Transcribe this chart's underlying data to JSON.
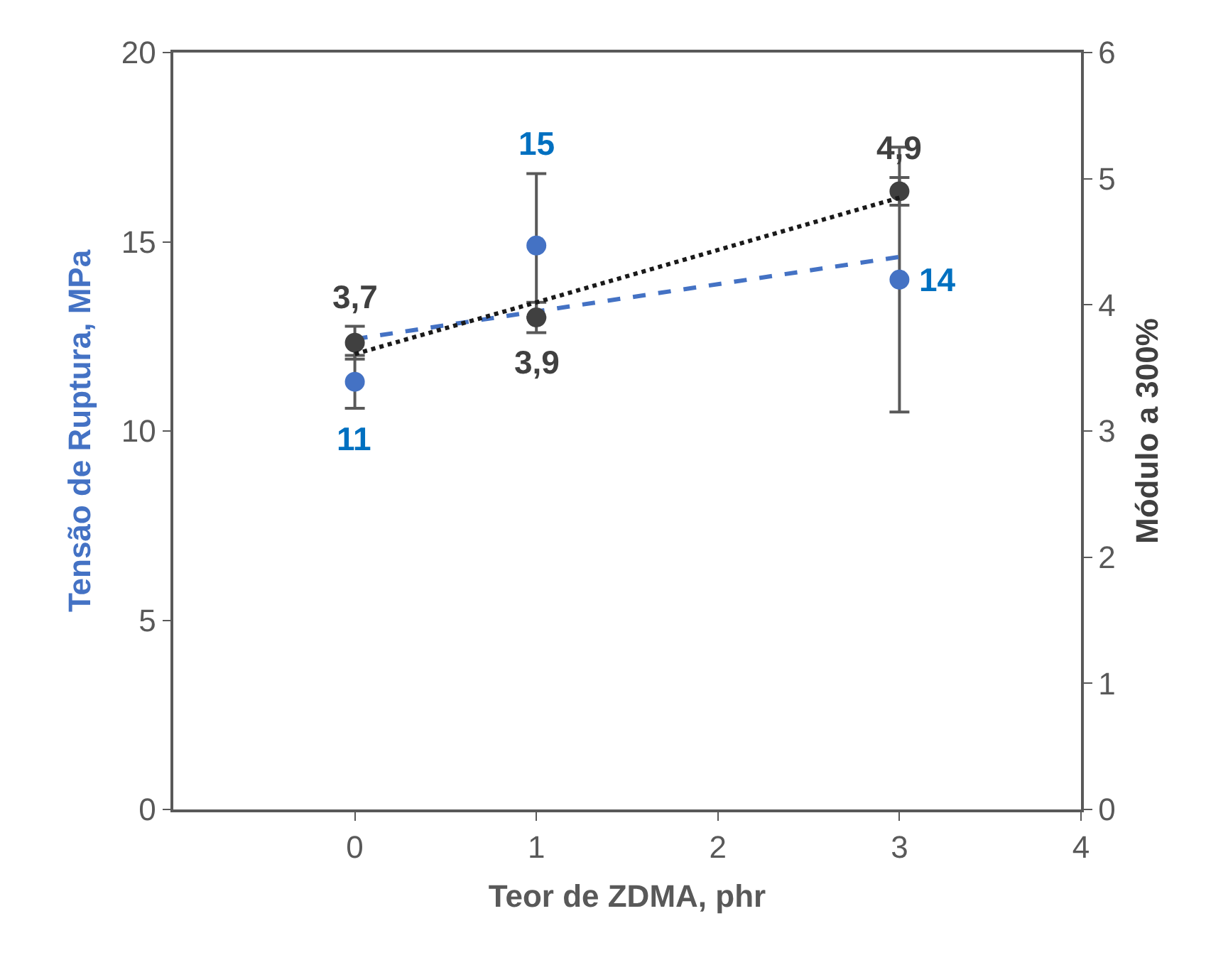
{
  "chart_data": {
    "type": "scatter",
    "xlabel": "Teor de ZDMA, phr",
    "ylabel": "Tensão de Ruptura, MPa",
    "y2label": "Módulo a 300%",
    "x": [
      0,
      1,
      3
    ],
    "series": [
      {
        "color": "#4472c4",
        "values": [
          11.3,
          14.9,
          14.0
        ],
        "errors": [
          0.7,
          1.9,
          3.5
        ],
        "value_labels": [
          "11",
          "15",
          "14"
        ]
      },
      {
        "color": "#404040",
        "axis": "y2",
        "values": [
          3.7,
          3.9,
          4.9
        ],
        "errors": [
          0.13,
          0.12,
          0.11
        ],
        "value_labels": [
          "3,7",
          "3,9",
          "4,9"
        ]
      },
      {
        "type": "line",
        "color": "#4472c4",
        "values": [
          12.43,
          13.16,
          14.6
        ],
        "line_style": "dashed",
        "marker": "none"
      },
      {
        "type": "line",
        "color": "#1a1a1a",
        "axis": "y2",
        "values": [
          3.61,
          4.02,
          4.85
        ],
        "line_style": "dotted",
        "marker": "none"
      }
    ],
    "xlim": [
      -1,
      4
    ],
    "xticks": [
      0,
      1,
      2,
      3,
      4
    ],
    "ylim": [
      0,
      20
    ],
    "yticks": [
      0,
      5,
      10,
      15,
      20
    ],
    "y2lim": [
      0,
      6
    ],
    "y2ticks": [
      0,
      1,
      2,
      3,
      4,
      5,
      6
    ],
    "marker": "circle"
  }
}
